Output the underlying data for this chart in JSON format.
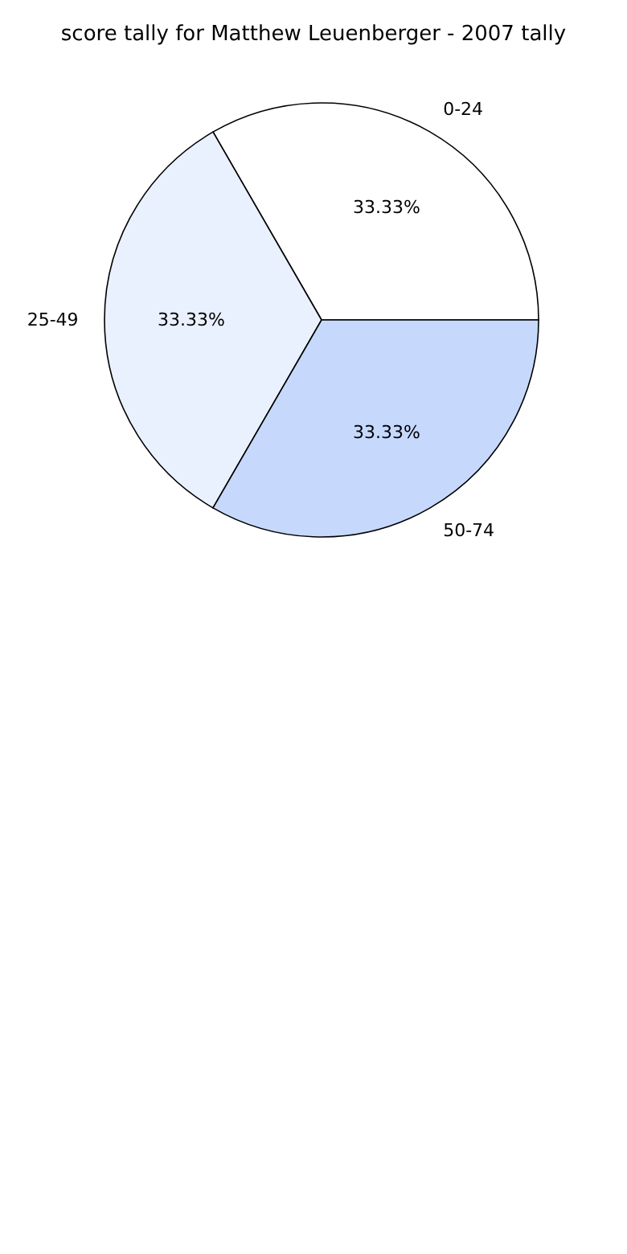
{
  "chart_data": {
    "type": "pie",
    "title": "score tally for Matthew Leuenberger - 2007 tally",
    "categories": [
      "0-24",
      "25-49",
      "50-74"
    ],
    "values": [
      33.33,
      33.33,
      33.33
    ],
    "value_labels": [
      "33.33%",
      "33.33%",
      "33.33%"
    ],
    "colors": [
      "#ffffff",
      "#eaf1fe",
      "#c6d9fd"
    ],
    "legend": false
  }
}
